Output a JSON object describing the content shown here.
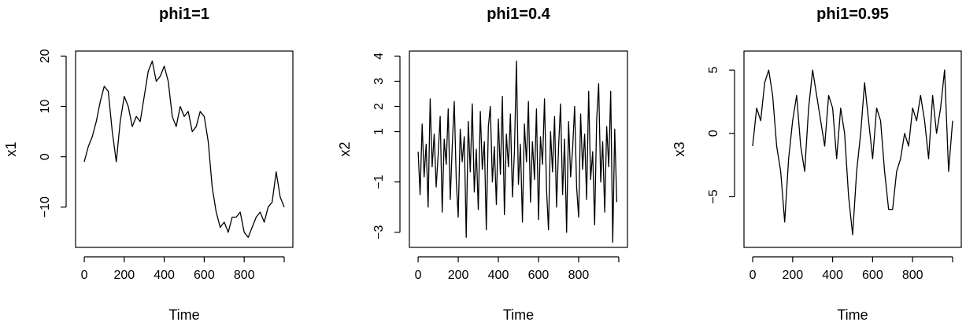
{
  "chart_data": [
    {
      "type": "line",
      "title": "phi1=1",
      "xlabel": "Time",
      "ylabel": "x1",
      "xlim": [
        0,
        1000
      ],
      "ylim": [
        -18,
        21
      ],
      "xticks": [
        0,
        200,
        400,
        600,
        800
      ],
      "yticks": [
        -10,
        0,
        10,
        20
      ],
      "series": [
        {
          "x": [
            0,
            20,
            40,
            60,
            80,
            100,
            120,
            140,
            160,
            180,
            200,
            220,
            240,
            260,
            280,
            300,
            320,
            340,
            360,
            380,
            400,
            420,
            440,
            460,
            480,
            500,
            520,
            540,
            560,
            580,
            600,
            620,
            640,
            660,
            680,
            700,
            720,
            740,
            760,
            780,
            800,
            820,
            840,
            860,
            880,
            900,
            920,
            940,
            960,
            980,
            1000
          ],
          "values": [
            -1,
            2,
            4,
            7,
            11,
            14,
            13,
            5,
            -1,
            7,
            12,
            10,
            6,
            8,
            7,
            12,
            17,
            19,
            15,
            16,
            18,
            15,
            8,
            6,
            10,
            8,
            9,
            5,
            6,
            9,
            8,
            3,
            -6,
            -11,
            -14,
            -13,
            -15,
            -12,
            -12,
            -11,
            -15,
            -16,
            -14,
            -12,
            -11,
            -13,
            -10,
            -9,
            -3,
            -8,
            -10
          ]
        }
      ]
    },
    {
      "type": "line",
      "title": "phi1=0.4",
      "xlabel": "Time",
      "ylabel": "x2",
      "xlim": [
        0,
        1000
      ],
      "ylim": [
        -3.6,
        4.2
      ],
      "xticks": [
        0,
        200,
        400,
        600,
        800
      ],
      "yticks": [
        -3,
        -1,
        1,
        2,
        3,
        4
      ],
      "series": [
        {
          "x": [
            0,
            10,
            20,
            30,
            40,
            50,
            60,
            70,
            80,
            90,
            100,
            110,
            120,
            130,
            140,
            150,
            160,
            170,
            180,
            190,
            200,
            210,
            220,
            230,
            240,
            250,
            260,
            270,
            280,
            290,
            300,
            310,
            320,
            330,
            340,
            350,
            360,
            370,
            380,
            390,
            400,
            410,
            420,
            430,
            440,
            450,
            460,
            470,
            480,
            490,
            500,
            510,
            520,
            530,
            540,
            550,
            560,
            570,
            580,
            590,
            600,
            610,
            620,
            630,
            640,
            650,
            660,
            670,
            680,
            690,
            700,
            710,
            720,
            730,
            740,
            750,
            760,
            770,
            780,
            790,
            800,
            810,
            820,
            830,
            840,
            850,
            860,
            870,
            880,
            890,
            900,
            910,
            920,
            930,
            940,
            950,
            960,
            970,
            980,
            990
          ],
          "values": [
            0.2,
            -1.5,
            1.3,
            -0.8,
            0.5,
            -2.0,
            2.3,
            -0.4,
            0.9,
            -1.2,
            0.1,
            1.6,
            -2.2,
            0.7,
            -0.3,
            1.9,
            -1.7,
            0.4,
            2.2,
            -0.9,
            -2.4,
            1.1,
            -0.2,
            0.8,
            -3.2,
            1.4,
            -0.6,
            2.1,
            -1.4,
            0.3,
            -2.1,
            1.8,
            -0.5,
            0.6,
            -2.9,
            1.2,
            2.0,
            -1.0,
            0.4,
            -1.9,
            1.5,
            -0.7,
            2.4,
            -2.3,
            0.9,
            -0.4,
            1.7,
            -1.6,
            0.2,
            3.8,
            -1.1,
            0.5,
            -2.6,
            1.3,
            -0.2,
            2.2,
            -1.8,
            0.6,
            -0.9,
            1.9,
            -2.5,
            0.8,
            -0.3,
            2.3,
            -1.3,
            -2.9,
            1.0,
            -0.6,
            1.6,
            -2.0,
            0.4,
            2.1,
            -1.5,
            0.7,
            -3.0,
            1.4,
            -0.8,
            0.3,
            2.0,
            -1.2,
            -2.4,
            1.7,
            -0.5,
            0.9,
            -1.7,
            2.6,
            -0.9,
            0.2,
            -2.7,
            1.5,
            2.9,
            -1.0,
            0.6,
            -2.2,
            1.2,
            -0.4,
            2.6,
            -3.4,
            1.1,
            -1.8
          ]
        }
      ]
    },
    {
      "type": "line",
      "title": "phi1=0.95",
      "xlabel": "Time",
      "ylabel": "x3",
      "xlim": [
        0,
        1000
      ],
      "ylim": [
        -9,
        6.5
      ],
      "xticks": [
        0,
        200,
        400,
        600,
        800
      ],
      "yticks": [
        -5,
        0,
        5
      ],
      "series": [
        {
          "x": [
            0,
            20,
            40,
            60,
            80,
            100,
            120,
            140,
            160,
            180,
            200,
            220,
            240,
            260,
            280,
            300,
            320,
            340,
            360,
            380,
            400,
            420,
            440,
            460,
            480,
            500,
            520,
            540,
            560,
            580,
            600,
            620,
            640,
            660,
            680,
            700,
            720,
            740,
            760,
            780,
            800,
            820,
            840,
            860,
            880,
            900,
            920,
            940,
            960,
            980,
            1000
          ],
          "values": [
            -1,
            2,
            1,
            4,
            5,
            3,
            -1,
            -3,
            -7,
            -2,
            1,
            3,
            -1,
            -3,
            2,
            5,
            3,
            1,
            -1,
            3,
            2,
            -2,
            2,
            0,
            -5,
            -8,
            -3,
            0,
            4,
            1,
            -2,
            2,
            1,
            -3,
            -6,
            -6,
            -3,
            -2,
            0,
            -1,
            2,
            1,
            3,
            1,
            -2,
            3,
            0,
            2,
            5,
            -3,
            1
          ]
        }
      ]
    }
  ]
}
